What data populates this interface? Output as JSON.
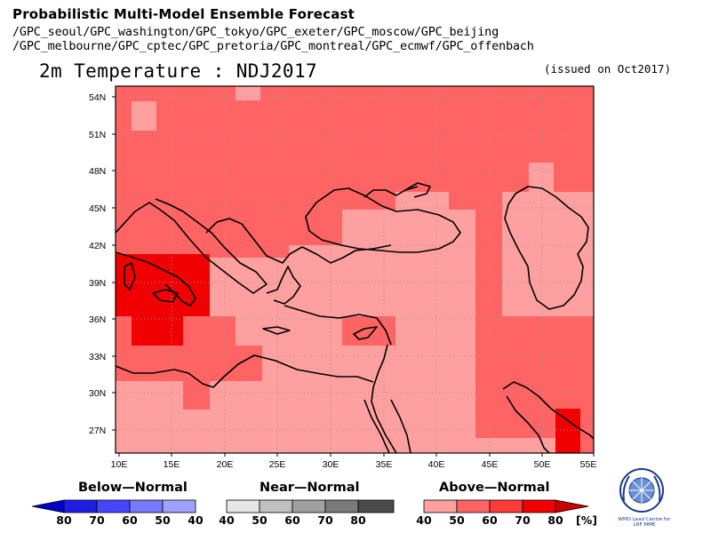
{
  "header": {
    "title": "Probabilistic Multi-Model Ensemble Forecast",
    "models_line1": "/GPC_seoul/GPC_washington/GPC_tokyo/GPC_exeter/GPC_moscow/GPC_beijing",
    "models_line2": "/GPC_melbourne/GPC_cptec/GPC_pretoria/GPC_montreal/GPC_ecmwf/GPC_offenbach",
    "variable_title": "2m Temperature : NDJ2017",
    "issued": "(issued on Oct2017)"
  },
  "map": {
    "lat_labels": [
      "54N",
      "51N",
      "48N",
      "45N",
      "42N",
      "39N",
      "36N",
      "33N",
      "30N",
      "27N"
    ],
    "lon_labels": [
      "10E",
      "15E",
      "20E",
      "25E",
      "30E",
      "35E",
      "40E",
      "45E",
      "50E",
      "55E"
    ],
    "colors": {
      "above_40": "#ffa0a0",
      "above_50": "#ff6464",
      "above_60": "#ff3a3a",
      "above_70": "#f00000"
    }
  },
  "legend": {
    "below": {
      "title": "Below—Normal",
      "labels": [
        "80",
        "70",
        "60",
        "50",
        "40"
      ],
      "colors": [
        "#0000c8",
        "#1e1ee6",
        "#4646ff",
        "#7878ff",
        "#a0a0ff"
      ]
    },
    "near": {
      "title": "Near—Normal",
      "labels": [
        "40",
        "50",
        "60",
        "70",
        "80"
      ],
      "colors": [
        "#e6e6e6",
        "#c0c0c0",
        "#a0a0a0",
        "#7a7a7a",
        "#4a4a4a"
      ]
    },
    "above": {
      "title": "Above—Normal",
      "labels": [
        "40",
        "50",
        "60",
        "70",
        "80",
        "[%]"
      ],
      "colors": [
        "#ffa0a0",
        "#ff6464",
        "#ff3a3a",
        "#f00000",
        "#c80000"
      ]
    }
  },
  "logo": {
    "text": "WMO Lead Centre for LRF MME",
    "icon": "wmo-logo-icon"
  }
}
